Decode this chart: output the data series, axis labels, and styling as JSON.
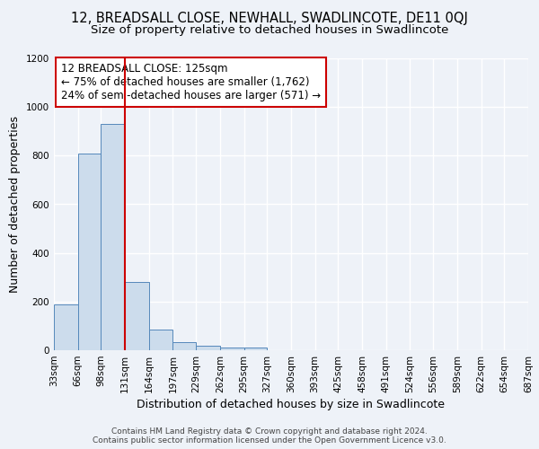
{
  "title": "12, BREADSALL CLOSE, NEWHALL, SWADLINCOTE, DE11 0QJ",
  "subtitle": "Size of property relative to detached houses in Swadlincote",
  "xlabel": "Distribution of detached houses by size in Swadlincote",
  "ylabel": "Number of detached properties",
  "footer_line1": "Contains HM Land Registry data © Crown copyright and database right 2024.",
  "footer_line2": "Contains public sector information licensed under the Open Government Licence v3.0.",
  "annotation_line1": "12 BREADSALL CLOSE: 125sqm",
  "annotation_line2": "← 75% of detached houses are smaller (1,762)",
  "annotation_line3": "24% of semi-detached houses are larger (571) →",
  "property_sqm": 125,
  "bin_edges": [
    33,
    66,
    98,
    131,
    164,
    197,
    229,
    262,
    295,
    327,
    360,
    393,
    425,
    458,
    491,
    524,
    556,
    589,
    622,
    654,
    687
  ],
  "bar_heights": [
    190,
    810,
    930,
    280,
    85,
    35,
    20,
    12,
    10,
    0,
    0,
    0,
    0,
    0,
    0,
    0,
    0,
    0,
    0,
    0
  ],
  "bar_color": "#ccdcec",
  "bar_edge_color": "#5588bb",
  "vline_color": "#cc0000",
  "vline_x": 131,
  "ylim": [
    0,
    1200
  ],
  "yticks": [
    0,
    200,
    400,
    600,
    800,
    1000,
    1200
  ],
  "background_color": "#eef2f8",
  "plot_bg_color": "#eef2f8",
  "grid_color": "#ffffff",
  "title_fontsize": 10.5,
  "subtitle_fontsize": 9.5,
  "axis_label_fontsize": 9,
  "tick_fontsize": 7.5,
  "footer_fontsize": 6.5
}
